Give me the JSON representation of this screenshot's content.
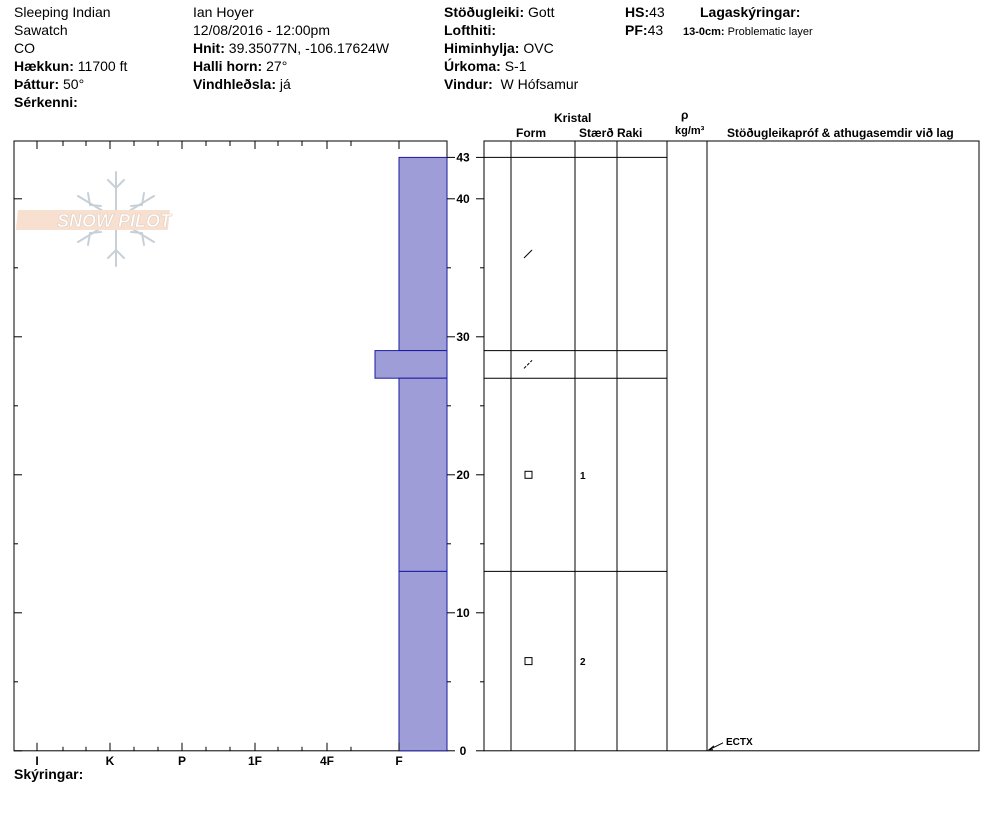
{
  "header": {
    "location_name": "Sleeping Indian",
    "range": "Sawatch",
    "state": "CO",
    "elevation_label": "Hækkun:",
    "elevation_value": "11700 ft",
    "aspect_label": "Þáttur:",
    "aspect_value": "50°",
    "features_label": "Sérkenni:",
    "observer": "Ian Hoyer",
    "datetime": "12/08/2016 - 12:00pm",
    "coords_label": "Hnit:",
    "coords_value": "39.35077N, -106.17624W",
    "slope_label": "Halli horn:",
    "slope_value": "27°",
    "wind_loading_label": "Vindhleðsla:",
    "wind_loading_value": "já",
    "stability_label": "Stöðugleiki:",
    "stability_value": "Gott",
    "air_temp_label": "Lofthiti:",
    "sky_label": "Himinhylja:",
    "sky_value": "OVC",
    "precip_label": "Úrkoma:",
    "precip_value": "S-1",
    "wind_label": "Vindur:",
    "wind_value": "W Hófsamur",
    "hs_label": "HS:",
    "hs_value": "43",
    "pf_label": "PF:",
    "pf_value": "43",
    "legend_title": "Lagaskýringar:",
    "legend_layer_range": "13-0cm:",
    "legend_layer_text": "Problematic layer"
  },
  "watermark": "SNOW PILOT",
  "columns": {
    "crystal": "Kristal",
    "form": "Form",
    "size": "Stærð",
    "moisture": "Raki",
    "density_symbol": "ρ",
    "density_unit": "kg/m³",
    "comments": "Stöðugleikapróf & athugasemdir við lag"
  },
  "footer": {
    "legend_label": "Skýringar:"
  },
  "chart_data": {
    "type": "bar",
    "orientation": "horizontal",
    "y_axis": {
      "label": "",
      "ylim": [
        0,
        43
      ],
      "ticks": [
        0,
        10,
        20,
        30,
        40,
        43
      ]
    },
    "x_axis": {
      "categories": [
        "I",
        "K",
        "P",
        "1F",
        "4F",
        "F"
      ],
      "reversed": true
    },
    "layers": [
      {
        "top": 43,
        "bottom": 29,
        "hardness": "F",
        "crystal_form": "decomposing",
        "grain_size": ""
      },
      {
        "top": 29,
        "bottom": 27,
        "hardness": "F+",
        "crystal_form": "decomposing",
        "grain_size": ""
      },
      {
        "top": 27,
        "bottom": 13,
        "hardness": "F",
        "crystal_form": "faceted",
        "grain_size": "1"
      },
      {
        "top": 13,
        "bottom": 0,
        "hardness": "F",
        "crystal_form": "faceted",
        "grain_size": "2"
      }
    ],
    "tests": [
      {
        "depth": 0,
        "label": "ECTX"
      }
    ],
    "fill_color": "#9e9dd8",
    "line_color": "#1a1aa0"
  }
}
